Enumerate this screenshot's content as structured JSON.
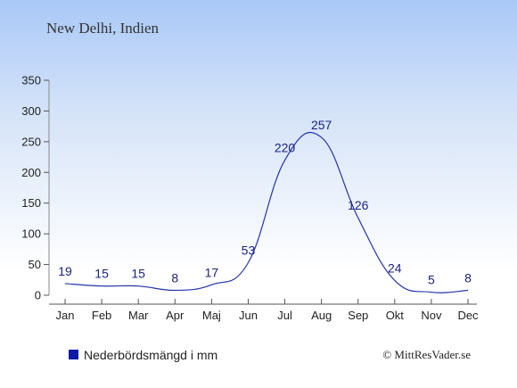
{
  "chart_data": {
    "type": "line",
    "title": "New Delhi, Indien",
    "categories": [
      "Jan",
      "Feb",
      "Mar",
      "Apr",
      "Maj",
      "Jun",
      "Jul",
      "Aug",
      "Sep",
      "Okt",
      "Nov",
      "Dec"
    ],
    "series": [
      {
        "name": "Nederbördsmängd i mm",
        "values": [
          19,
          15,
          15,
          8,
          17,
          53,
          220,
          257,
          126,
          24,
          5,
          8
        ]
      }
    ],
    "yticks": [
      0,
      50,
      100,
      150,
      200,
      250,
      300,
      350
    ],
    "ylim": [
      0,
      350
    ],
    "grid": false,
    "legend_position": "bottom-left",
    "colors": {
      "line": "#2233aa",
      "legend_marker": "#0d1aa6",
      "label": "#1a237e"
    }
  },
  "credit": "© MittResVader.se"
}
